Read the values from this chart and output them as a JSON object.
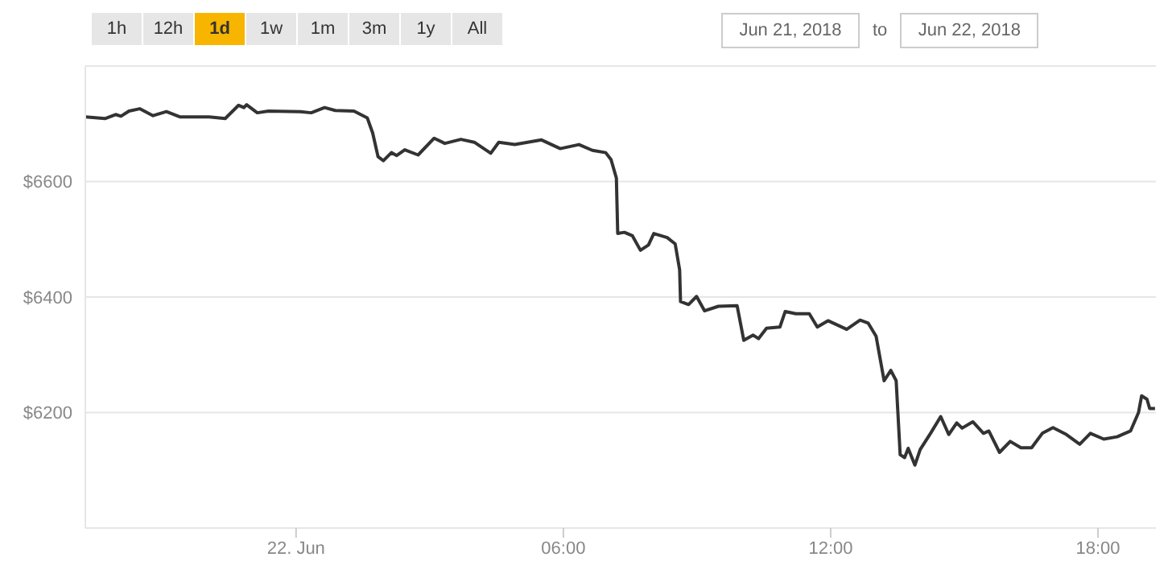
{
  "chart_data": {
    "type": "line",
    "annotations": [
      "1h",
      "12h",
      "1d",
      "1w",
      "1m",
      "3m",
      "1y",
      "All",
      "Jun 21, 2018",
      "to",
      "Jun 22, 2018"
    ],
    "x": [
      -4.72,
      -4.29,
      -4.05,
      -3.93,
      -3.75,
      -3.51,
      -3.21,
      -2.91,
      -2.61,
      -1.95,
      -1.59,
      -1.29,
      -1.17,
      -1.11,
      -0.87,
      -0.62,
      0.1,
      0.34,
      0.64,
      0.88,
      1.3,
      1.6,
      1.72,
      1.84,
      1.96,
      2.14,
      2.26,
      2.44,
      2.74,
      3.1,
      3.34,
      3.7,
      4.0,
      4.37,
      4.55,
      4.91,
      5.51,
      5.93,
      6.35,
      6.65,
      6.95,
      7.07,
      7.19,
      7.22,
      7.37,
      7.55,
      7.73,
      7.91,
      8.03,
      8.33,
      8.51,
      8.61,
      8.63,
      8.81,
      8.99,
      9.17,
      9.48,
      9.9,
      10.05,
      10.26,
      10.38,
      10.56,
      10.86,
      10.98,
      11.22,
      11.52,
      11.7,
      11.94,
      12.36,
      12.66,
      12.84,
      13.02,
      13.2,
      13.35,
      13.47,
      13.56,
      13.66,
      13.74,
      13.89,
      14.01,
      14.25,
      14.47,
      14.65,
      14.83,
      14.95,
      15.19,
      15.43,
      15.55,
      15.79,
      16.03,
      16.27,
      16.51,
      16.75,
      16.99,
      17.29,
      17.59,
      17.83,
      18.13,
      18.43,
      18.73,
      18.91,
      18.98,
      19.1,
      19.16,
      19.28
    ],
    "series": [
      {
        "color": "#333333",
        "values": [
          6712,
          6709,
          6716,
          6713,
          6722,
          6726,
          6714,
          6721,
          6712,
          6712,
          6709,
          6732,
          6728,
          6733,
          6719,
          6722,
          6721,
          6719,
          6728,
          6723,
          6722,
          6710,
          6684,
          6643,
          6636,
          6650,
          6645,
          6655,
          6646,
          6675,
          6666,
          6673,
          6668,
          6649,
          6668,
          6664,
          6672,
          6657,
          6664,
          6654,
          6650,
          6638,
          6606,
          6510,
          6512,
          6506,
          6481,
          6490,
          6510,
          6503,
          6492,
          6447,
          6392,
          6387,
          6401,
          6376,
          6384,
          6385,
          6325,
          6334,
          6328,
          6346,
          6348,
          6375,
          6371,
          6371,
          6348,
          6359,
          6344,
          6360,
          6355,
          6332,
          6255,
          6273,
          6255,
          6127,
          6122,
          6138,
          6109,
          6136,
          6165,
          6193,
          6162,
          6182,
          6173,
          6184,
          6164,
          6168,
          6131,
          6150,
          6139,
          6139,
          6164,
          6174,
          6162,
          6145,
          6164,
          6154,
          6158,
          6168,
          6200,
          6229,
          6223,
          6207,
          6207
        ]
      }
    ],
    "xlim": [
      -4.73,
      19.3
    ],
    "xticks": [
      {
        "value": 0,
        "label": "22. Jun"
      },
      {
        "value": 6,
        "label": "06:00"
      },
      {
        "value": 12,
        "label": "12:00"
      },
      {
        "value": 18,
        "label": "18:00"
      }
    ],
    "ylim": [
      6000,
      6800
    ],
    "yticks": [
      {
        "value": 6200,
        "label": "$6200"
      },
      {
        "value": 6400,
        "label": "$6400"
      },
      {
        "value": 6600,
        "label": "$6600"
      }
    ],
    "grid": "y",
    "legend": false,
    "marker": "none",
    "line_style": "solid"
  }
}
